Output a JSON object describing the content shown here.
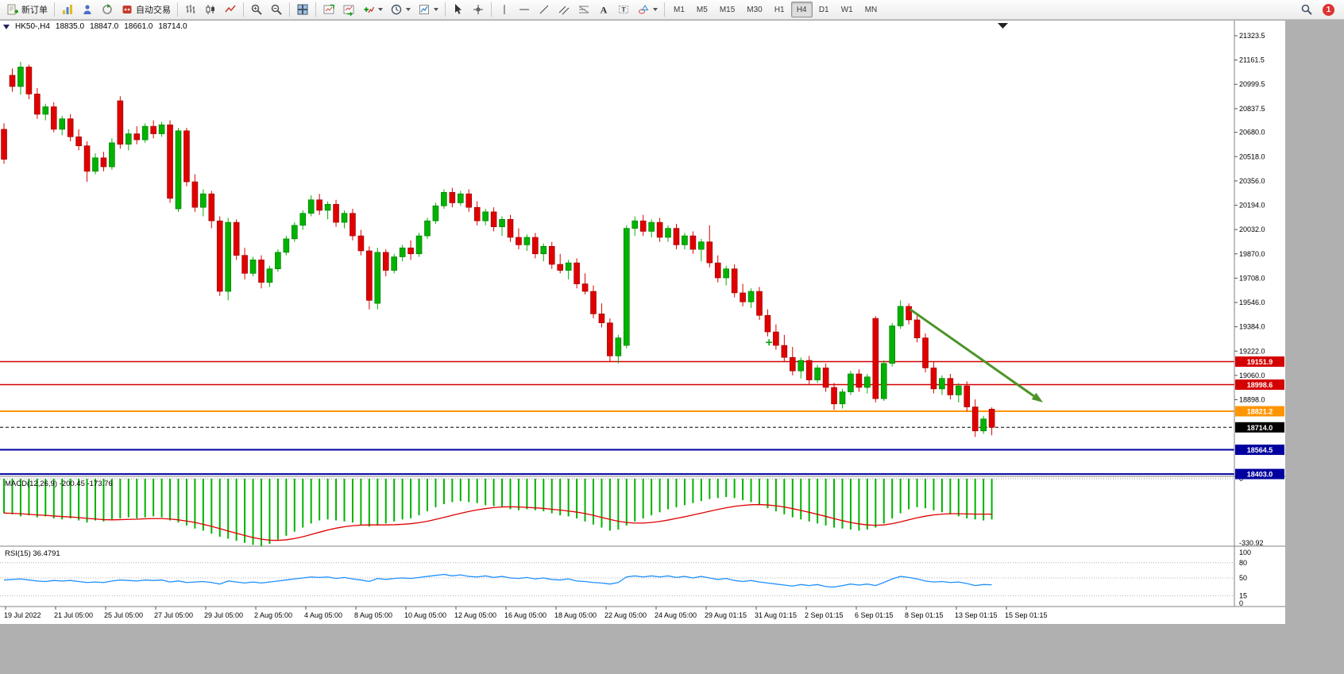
{
  "toolbar": {
    "new_order_label": "新订单",
    "auto_trading_label": "自动交易",
    "timeframes": [
      "M1",
      "M5",
      "M15",
      "M30",
      "H1",
      "H4",
      "D1",
      "W1",
      "MN"
    ],
    "active_timeframe": "H4",
    "notification_count": "1"
  },
  "chart": {
    "symbol": "HK50-,H4",
    "open": "18835.0",
    "high": "18847.0",
    "low": "18661.0",
    "close": "18714.0"
  },
  "chart_data": [
    {
      "type": "candlestick",
      "title": "HK50-,H4",
      "timeframe": "H4",
      "up_color": "#00b300",
      "down_color": "#e00000",
      "y_axis_labels": [
        21323.5,
        21161.5,
        20999.5,
        20837.5,
        20680.0,
        20518.0,
        20356.0,
        20194.0,
        20032.0,
        19870.0,
        19708.0,
        19546.0,
        19384.0,
        19222.0,
        19060.0,
        18898.0
      ],
      "h_lines": [
        {
          "price": 19151.9,
          "label": "19151.9",
          "color": "#d40000",
          "style": "solid",
          "width": 1.5
        },
        {
          "price": 18998.6,
          "label": "18998.6",
          "color": "#d40000",
          "style": "solid",
          "width": 1.5
        },
        {
          "price": 18821.2,
          "label": "18821.2",
          "color": "#ff9500",
          "style": "solid",
          "width": 2
        },
        {
          "price": 18714.0,
          "label": "18714.0",
          "color": "#000000",
          "style": "dash",
          "width": 1
        },
        {
          "price": 18564.5,
          "label": "18564.5",
          "color": "#0000a0",
          "style": "solid",
          "width": 2
        },
        {
          "price": 18403.0,
          "label": "18403.0",
          "color": "#0000a0",
          "style": "solid",
          "width": 2
        }
      ],
      "time_labels": [
        "19 Jul 2022",
        "21 Jul 05:00",
        "25 Jul 05:00",
        "27 Jul 05:00",
        "29 Jul 05:00",
        "2 Aug 05:00",
        "4 Aug 05:00",
        "8 Aug 05:00",
        "10 Aug 05:00",
        "12 Aug 05:00",
        "16 Aug 05:00",
        "18 Aug 05:00",
        "22 Aug 05:00",
        "24 Aug 05:00",
        "29 Aug 01:15",
        "31 Aug 01:15",
        "2 Sep 01:15",
        "6 Sep 01:15",
        "8 Sep 01:15",
        "13 Sep 01:15",
        "15 Sep 01:15"
      ],
      "annotations": {
        "trend_arrow": {
          "from_bar": 109.5,
          "from_price": 19500,
          "to_bar": 125.5,
          "to_price": 18880,
          "color": "#4a9428"
        },
        "plus_marker": {
          "bar": 92.5,
          "price": 19280,
          "color": "#00a000"
        }
      },
      "ohlc": [
        [
          20700,
          20740,
          20470,
          20500
        ],
        [
          21060,
          21105,
          20950,
          20985
        ],
        [
          20985,
          21150,
          20930,
          21115
        ],
        [
          21115,
          21130,
          20900,
          20935
        ],
        [
          20935,
          20975,
          20770,
          20800
        ],
        [
          20800,
          20870,
          20760,
          20850
        ],
        [
          20850,
          20880,
          20680,
          20700
        ],
        [
          20700,
          20790,
          20660,
          20770
        ],
        [
          20770,
          20800,
          20620,
          20650
        ],
        [
          20650,
          20700,
          20560,
          20590
        ],
        [
          20590,
          20620,
          20350,
          20420
        ],
        [
          20420,
          20540,
          20400,
          20510
        ],
        [
          20510,
          20550,
          20420,
          20450
        ],
        [
          20450,
          20640,
          20430,
          20610
        ],
        [
          20890,
          20920,
          20570,
          20600
        ],
        [
          20600,
          20700,
          20560,
          20670
        ],
        [
          20670,
          20720,
          20600,
          20630
        ],
        [
          20630,
          20740,
          20610,
          20720
        ],
        [
          20720,
          20760,
          20640,
          20670
        ],
        [
          20670,
          20750,
          20650,
          20730
        ],
        [
          20730,
          20760,
          20210,
          20240
        ],
        [
          20170,
          20710,
          20150,
          20690
        ],
        [
          20690,
          20710,
          20320,
          20350
        ],
        [
          20350,
          20400,
          20150,
          20180
        ],
        [
          20180,
          20300,
          20120,
          20270
        ],
        [
          20270,
          20290,
          20040,
          20090
        ],
        [
          20090,
          20120,
          19590,
          19620
        ],
        [
          19620,
          20110,
          19560,
          20080
        ],
        [
          20080,
          20100,
          19830,
          19860
        ],
        [
          19860,
          19910,
          19700,
          19740
        ],
        [
          19740,
          19850,
          19720,
          19830
        ],
        [
          19830,
          19860,
          19640,
          19680
        ],
        [
          19680,
          19790,
          19650,
          19770
        ],
        [
          19770,
          19900,
          19750,
          19880
        ],
        [
          19880,
          19990,
          19860,
          19970
        ],
        [
          19970,
          20080,
          19950,
          20060
        ],
        [
          20060,
          20160,
          20030,
          20140
        ],
        [
          20140,
          20260,
          20120,
          20230
        ],
        [
          20230,
          20270,
          20130,
          20160
        ],
        [
          20160,
          20220,
          20100,
          20200
        ],
        [
          20200,
          20230,
          20050,
          20080
        ],
        [
          20080,
          20160,
          20040,
          20140
        ],
        [
          20140,
          20170,
          19960,
          19990
        ],
        [
          19990,
          20030,
          19860,
          19890
        ],
        [
          19890,
          19920,
          19500,
          19560
        ],
        [
          19540,
          19910,
          19500,
          19880
        ],
        [
          19880,
          19900,
          19720,
          19760
        ],
        [
          19760,
          19870,
          19740,
          19850
        ],
        [
          19850,
          19930,
          19820,
          19910
        ],
        [
          19910,
          19960,
          19830,
          19870
        ],
        [
          19870,
          20010,
          19850,
          19990
        ],
        [
          19990,
          20110,
          19970,
          20090
        ],
        [
          20090,
          20210,
          20070,
          20190
        ],
        [
          20190,
          20300,
          20170,
          20280
        ],
        [
          20280,
          20310,
          20180,
          20210
        ],
        [
          20210,
          20290,
          20190,
          20270
        ],
        [
          20270,
          20300,
          20150,
          20180
        ],
        [
          20180,
          20220,
          20060,
          20090
        ],
        [
          20090,
          20170,
          20060,
          20150
        ],
        [
          20150,
          20180,
          20020,
          20050
        ],
        [
          20050,
          20120,
          19990,
          20100
        ],
        [
          20100,
          20130,
          19950,
          19980
        ],
        [
          19980,
          20040,
          19900,
          19930
        ],
        [
          19930,
          20000,
          19890,
          19980
        ],
        [
          19980,
          20010,
          19840,
          19870
        ],
        [
          19870,
          19940,
          19820,
          19920
        ],
        [
          19920,
          19950,
          19770,
          19800
        ],
        [
          19800,
          19870,
          19740,
          19760
        ],
        [
          19760,
          19830,
          19700,
          19810
        ],
        [
          19810,
          19840,
          19640,
          19670
        ],
        [
          19670,
          19740,
          19600,
          19620
        ],
        [
          19620,
          19660,
          19440,
          19470
        ],
        [
          19470,
          19540,
          19380,
          19410
        ],
        [
          19410,
          19440,
          19150,
          19190
        ],
        [
          19190,
          19330,
          19140,
          19310
        ],
        [
          19260,
          20060,
          19240,
          20040
        ],
        [
          20040,
          20120,
          19990,
          20090
        ],
        [
          20090,
          20130,
          19990,
          20020
        ],
        [
          20020,
          20100,
          19980,
          20080
        ],
        [
          20080,
          20110,
          19950,
          19980
        ],
        [
          19980,
          20060,
          19950,
          20040
        ],
        [
          20040,
          20070,
          19900,
          19930
        ],
        [
          19930,
          20010,
          19900,
          19990
        ],
        [
          19990,
          20020,
          19870,
          19900
        ],
        [
          19900,
          19970,
          19820,
          19950
        ],
        [
          19950,
          20060,
          19780,
          19810
        ],
        [
          19810,
          19860,
          19680,
          19710
        ],
        [
          19710,
          19790,
          19660,
          19770
        ],
        [
          19770,
          19800,
          19580,
          19610
        ],
        [
          19610,
          19670,
          19520,
          19550
        ],
        [
          19550,
          19640,
          19510,
          19620
        ],
        [
          19620,
          19650,
          19430,
          19460
        ],
        [
          19460,
          19500,
          19320,
          19350
        ],
        [
          19350,
          19400,
          19230,
          19260
        ],
        [
          19260,
          19330,
          19150,
          19180
        ],
        [
          19180,
          19250,
          19060,
          19090
        ],
        [
          19090,
          19180,
          19040,
          19160
        ],
        [
          19160,
          19190,
          19000,
          19030
        ],
        [
          19030,
          19130,
          19010,
          19110
        ],
        [
          19110,
          19140,
          18950,
          18980
        ],
        [
          18980,
          19010,
          18830,
          18870
        ],
        [
          18870,
          18970,
          18840,
          18950
        ],
        [
          18950,
          19090,
          18930,
          19070
        ],
        [
          19070,
          19100,
          18950,
          18980
        ],
        [
          18980,
          19070,
          18940,
          19050
        ],
        [
          19440,
          19455,
          18880,
          18905
        ],
        [
          18905,
          19160,
          18890,
          19140
        ],
        [
          19140,
          19410,
          19120,
          19390
        ],
        [
          19390,
          19560,
          19370,
          19520
        ],
        [
          19520,
          19540,
          19400,
          19430
        ],
        [
          19430,
          19460,
          19280,
          19310
        ],
        [
          19310,
          19340,
          19080,
          19110
        ],
        [
          19110,
          19150,
          18940,
          18970
        ],
        [
          18970,
          19060,
          18930,
          19040
        ],
        [
          19040,
          19070,
          18900,
          18930
        ],
        [
          18930,
          19010,
          18880,
          18990
        ],
        [
          18990,
          19020,
          18820,
          18850
        ],
        [
          18850,
          18900,
          18650,
          18690
        ],
        [
          18690,
          18790,
          18670,
          18770
        ],
        [
          18835,
          18847,
          18661,
          18714
        ]
      ]
    },
    {
      "type": "bar",
      "label": "MACD(12,26,9)",
      "current_values": "-200.45 -173.76",
      "histogram_color": "#00b300",
      "signal_color": "#e00000",
      "y_labels": [
        "0",
        "-330.92"
      ],
      "histogram": [
        -170,
        -175,
        -185,
        -180,
        -190,
        -185,
        -195,
        -200,
        -195,
        -205,
        -215,
        -205,
        -210,
        -200,
        -195,
        -190,
        -195,
        -190,
        -185,
        -190,
        -205,
        -215,
        -230,
        -245,
        -255,
        -270,
        -285,
        -295,
        -305,
        -315,
        -325,
        -331,
        -320,
        -300,
        -280,
        -260,
        -240,
        -220,
        -205,
        -200,
        -205,
        -210,
        -215,
        -225,
        -235,
        -230,
        -220,
        -210,
        -200,
        -195,
        -180,
        -160,
        -140,
        -125,
        -115,
        -110,
        -115,
        -120,
        -130,
        -135,
        -140,
        -150,
        -155,
        -150,
        -155,
        -160,
        -170,
        -180,
        -185,
        -195,
        -210,
        -225,
        -240,
        -255,
        -250,
        -230,
        -210,
        -195,
        -180,
        -165,
        -150,
        -140,
        -130,
        -120,
        -110,
        -100,
        -95,
        -90,
        -95,
        -105,
        -115,
        -130,
        -145,
        -160,
        -175,
        -190,
        -200,
        -210,
        -220,
        -230,
        -240,
        -245,
        -250,
        -255,
        -250,
        -240,
        -220,
        -195,
        -170,
        -150,
        -140,
        -145,
        -155,
        -165,
        -175,
        -185,
        -195,
        -200,
        -205,
        -200
      ],
      "signal": [
        -169,
        -170,
        -172,
        -175,
        -178,
        -180,
        -183,
        -186,
        -188,
        -191,
        -195,
        -198,
        -201,
        -202,
        -201,
        -200,
        -199,
        -197,
        -196,
        -196,
        -198,
        -202,
        -208,
        -215,
        -224,
        -234,
        -245,
        -257,
        -268,
        -279,
        -289,
        -297,
        -302,
        -303,
        -300,
        -294,
        -285,
        -274,
        -263,
        -252,
        -243,
        -236,
        -231,
        -228,
        -227,
        -227,
        -227,
        -226,
        -224,
        -221,
        -216,
        -209,
        -200,
        -190,
        -180,
        -170,
        -161,
        -153,
        -147,
        -142,
        -139,
        -138,
        -139,
        -141,
        -143,
        -146,
        -150,
        -154,
        -159,
        -164,
        -171,
        -180,
        -190,
        -200,
        -209,
        -215,
        -218,
        -218,
        -215,
        -210,
        -203,
        -195,
        -187,
        -178,
        -169,
        -160,
        -151,
        -143,
        -136,
        -131,
        -128,
        -127,
        -129,
        -133,
        -139,
        -147,
        -156,
        -165,
        -175,
        -185,
        -196,
        -206,
        -215,
        -222,
        -227,
        -229,
        -227,
        -221,
        -212,
        -202,
        -192,
        -184,
        -178,
        -174,
        -172,
        -172,
        -173,
        -174,
        -174,
        -174
      ]
    },
    {
      "type": "line",
      "label": "RSI(15)",
      "current_value": "36.4791",
      "line_color": "#1e90ff",
      "levels": [
        100,
        80,
        50,
        15,
        0
      ],
      "values": [
        46,
        47,
        48,
        46,
        44,
        43,
        45,
        44,
        45,
        43,
        41,
        42,
        41,
        44,
        46,
        45,
        44,
        46,
        45,
        46,
        42,
        44,
        41,
        42,
        43,
        41,
        38,
        44,
        42,
        40,
        42,
        40,
        42,
        44,
        46,
        48,
        50,
        52,
        51,
        52,
        49,
        51,
        48,
        46,
        43,
        49,
        47,
        49,
        50,
        49,
        51,
        53,
        55,
        57,
        54,
        56,
        53,
        52,
        54,
        51,
        53,
        50,
        49,
        51,
        48,
        50,
        47,
        46,
        48,
        44,
        43,
        41,
        40,
        38,
        41,
        52,
        54,
        52,
        54,
        52,
        54,
        51,
        53,
        50,
        53,
        50,
        47,
        49,
        45,
        43,
        45,
        42,
        40,
        38,
        36,
        34,
        37,
        35,
        37,
        33,
        32,
        35,
        38,
        36,
        38,
        35,
        41,
        48,
        53,
        51,
        48,
        44,
        42,
        43,
        41,
        42,
        39,
        35,
        37,
        36.48
      ]
    }
  ]
}
